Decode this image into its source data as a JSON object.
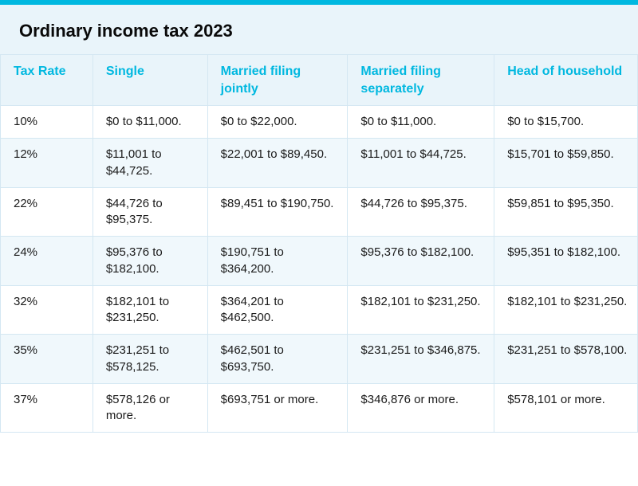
{
  "colors": {
    "accent": "#00b8e0",
    "title_bg": "#e9f4fa",
    "header_bg": "#e9f4fa",
    "header_text": "#00b8e0",
    "row_even_bg": "#ffffff",
    "row_odd_bg": "#f0f8fc",
    "border": "#d4e7f2",
    "title_text": "#0a0a0a",
    "cell_text": "#1a1a1a"
  },
  "title": "Ordinary income tax 2023",
  "table": {
    "columns": [
      "Tax Rate",
      "Single",
      "Married filing jointly",
      "Married filing separately",
      "Head of household"
    ],
    "rows": [
      [
        "10%",
        "$0 to $11,000.",
        "$0 to $22,000.",
        "$0 to $11,000.",
        "$0 to $15,700."
      ],
      [
        "12%",
        "$11,001 to $44,725.",
        "$22,001 to $89,450.",
        "$11,001 to $44,725.",
        "$15,701 to $59,850."
      ],
      [
        "22%",
        "$44,726 to $95,375.",
        "$89,451 to $190,750.",
        "$44,726 to $95,375.",
        "$59,851 to $95,350."
      ],
      [
        "24%",
        "$95,376 to $182,100.",
        "$190,751 to $364,200.",
        "$95,376 to $182,100.",
        "$95,351 to $182,100."
      ],
      [
        "32%",
        "$182,101 to $231,250.",
        "$364,201 to $462,500.",
        "$182,101 to $231,250.",
        "$182,101 to $231,250."
      ],
      [
        "35%",
        "$231,251 to $578,125.",
        "$462,501 to $693,750.",
        "$231,251 to $346,875.",
        "$231,251 to $578,100."
      ],
      [
        "37%",
        "$578,126 or more.",
        "$693,751 or more.",
        "$346,876 or more.",
        "$578,101 or more."
      ]
    ]
  }
}
